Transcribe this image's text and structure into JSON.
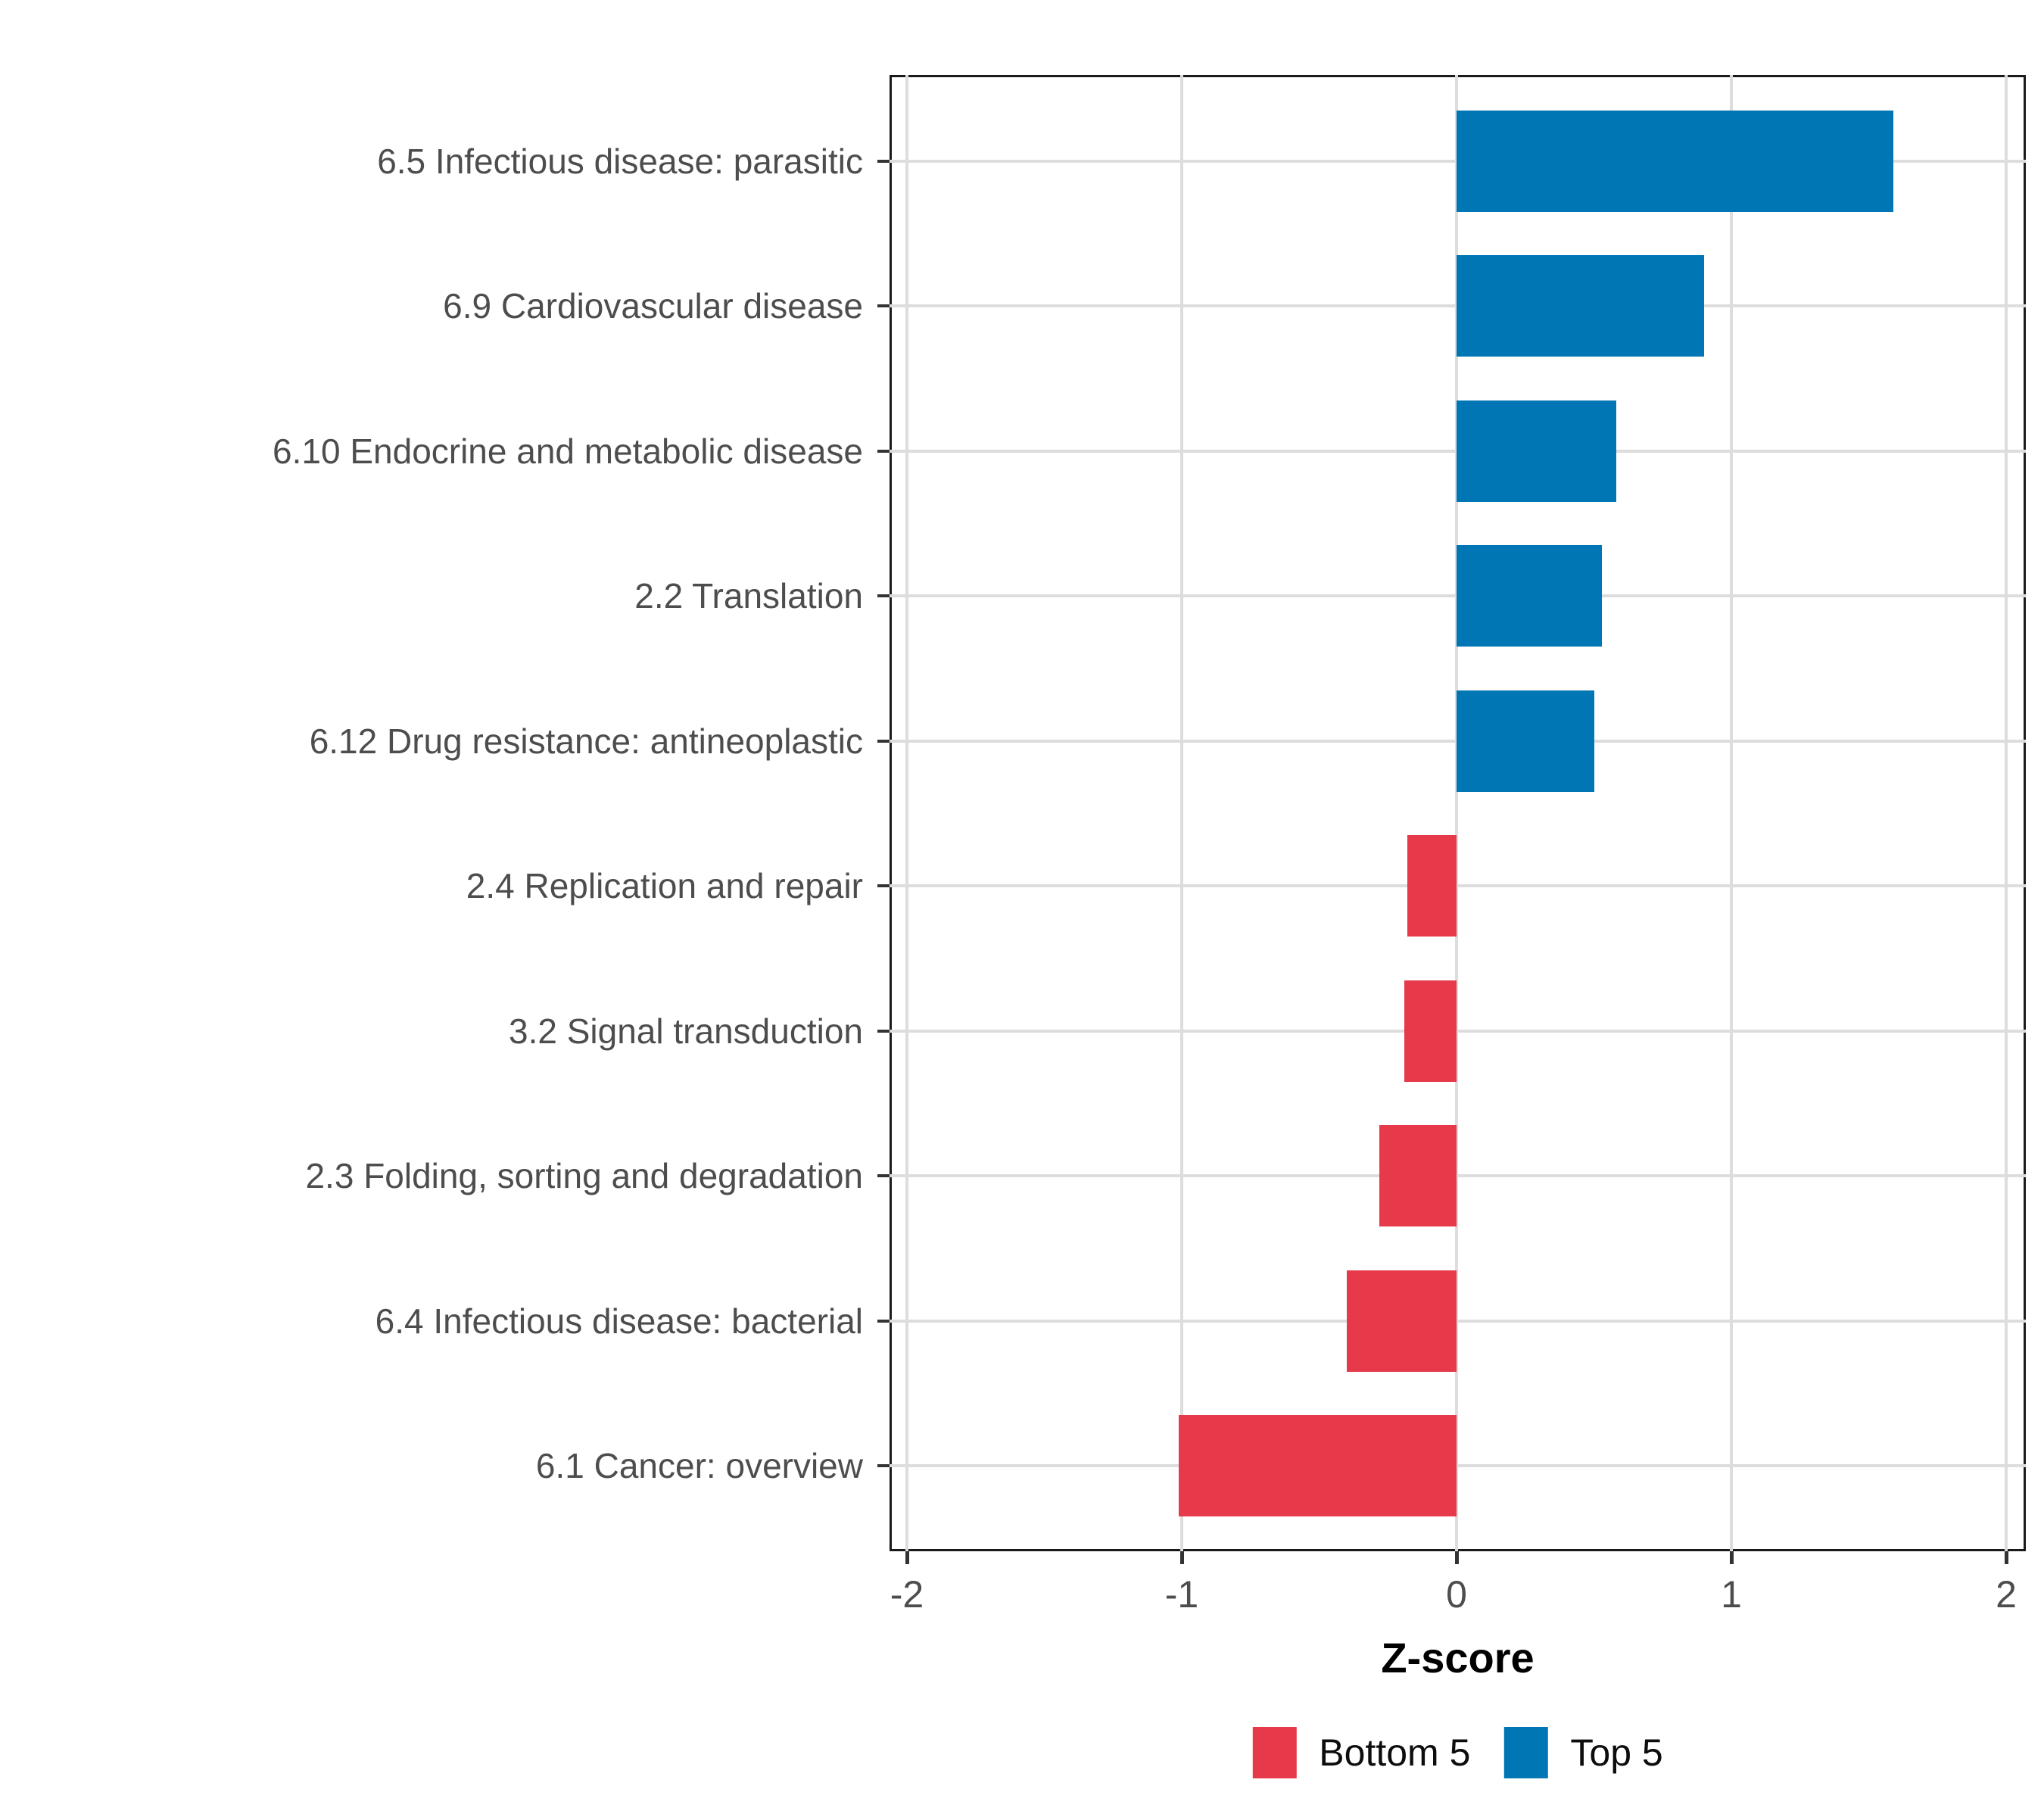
{
  "chart_data": {
    "type": "bar",
    "orientation": "horizontal",
    "title": "",
    "xlabel": "Z-score",
    "ylabel": "",
    "xlim": [
      -2.06,
      2.07
    ],
    "x_ticks": [
      -2,
      -1,
      0,
      1,
      2
    ],
    "grid": true,
    "legend_position": "bottom",
    "categories": [
      "6.5 Infectious disease: parasitic",
      "6.9 Cardiovascular disease",
      "6.10 Endocrine and metabolic disease",
      "2.2 Translation",
      "6.12 Drug resistance: antineoplastic",
      "2.4 Replication and repair",
      "3.2 Signal transduction",
      "2.3 Folding, sorting and degradation",
      "6.4 Infectious disease: bacterial",
      "6.1 Cancer: overview"
    ],
    "values": [
      1.59,
      0.9,
      0.58,
      0.53,
      0.5,
      -0.18,
      -0.19,
      -0.28,
      -0.4,
      -1.01
    ],
    "groups": [
      "Top 5",
      "Top 5",
      "Top 5",
      "Top 5",
      "Top 5",
      "Bottom 5",
      "Bottom 5",
      "Bottom 5",
      "Bottom 5",
      "Bottom 5"
    ],
    "legend": [
      {
        "label": "Bottom 5",
        "color": "#E6394A"
      },
      {
        "label": "Top 5",
        "color": "#0076B5"
      }
    ],
    "colors": {
      "Top 5": "#0076B5",
      "Bottom 5": "#E6394A",
      "grid": "#DDDDDD",
      "axis_text": "#4D4D4D",
      "tick_mark": "#333333",
      "panel_border": "#1A1A1A"
    }
  }
}
